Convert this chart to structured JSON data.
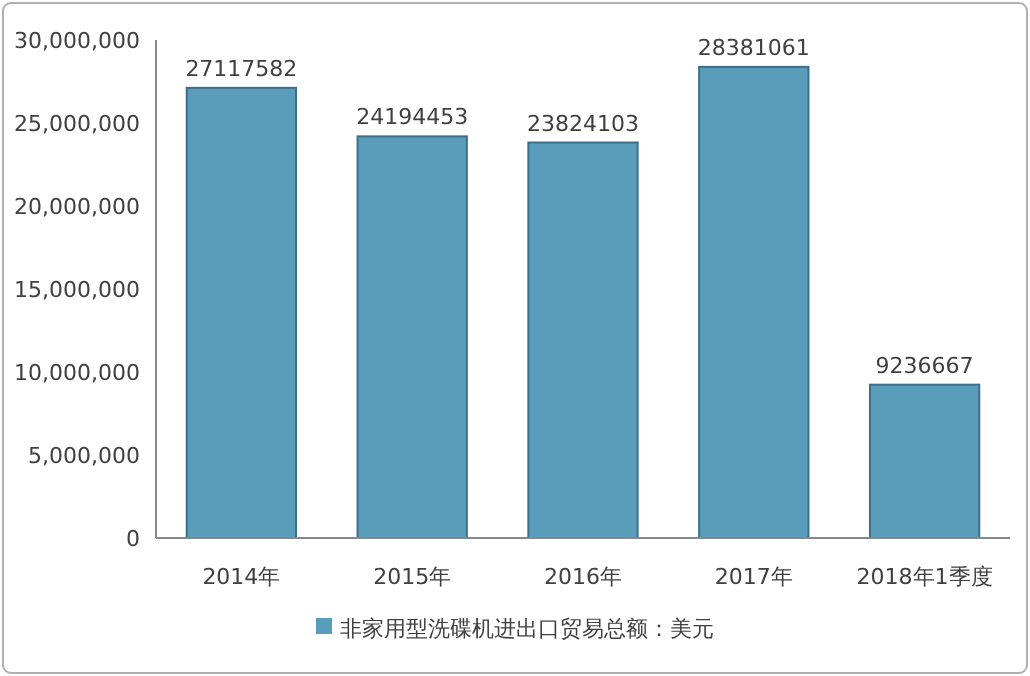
{
  "chart_data": {
    "type": "bar",
    "categories": [
      "2014年",
      "2015年",
      "2016年",
      "2017年",
      "2018年1季度"
    ],
    "series": [
      {
        "name": "非家用型洗碟机进出口贸易总额：美元",
        "color": "#5a9dba",
        "values": [
          27117582,
          24194453,
          23824103,
          28381061,
          9236667
        ]
      }
    ],
    "ylim": [
      0,
      30000000
    ],
    "yticks": [
      {
        "value": 0,
        "label": "0"
      },
      {
        "value": 5000000,
        "label": "5,000,000"
      },
      {
        "value": 10000000,
        "label": "10,000,000"
      },
      {
        "value": 15000000,
        "label": "15,000,000"
      },
      {
        "value": 20000000,
        "label": "20,000,000"
      },
      {
        "value": 25000000,
        "label": "25,000,000"
      },
      {
        "value": 30000000,
        "label": "30,000,000"
      }
    ],
    "data_labels": true,
    "legend": "bottom"
  }
}
